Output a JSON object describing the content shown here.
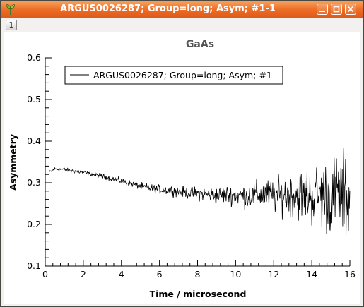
{
  "window": {
    "title": "ARGUS0026287; Group=long; Asym; #1-1",
    "tab_label": "1"
  },
  "colors": {
    "titlebar": "#ec6c25",
    "plot_line": "#000000"
  },
  "chart_data": {
    "type": "line",
    "title": "GaAs",
    "xlabel": "Time / microsecond",
    "ylabel": "Asymmetry",
    "xlim": [
      0,
      16
    ],
    "ylim": [
      0.1,
      0.6
    ],
    "xticks": [
      "0",
      "2",
      "4",
      "6",
      "8",
      "10",
      "12",
      "14",
      "16"
    ],
    "yticks": [
      "0.1",
      "0.2",
      "0.3",
      "0.4",
      "0.5",
      "0.6"
    ],
    "legend": {
      "placement": "top-left",
      "entries": [
        "ARGUS0026287; Group=long; Asym; #1"
      ]
    },
    "series": [
      {
        "name": "ARGUS0026287; Group=long; Asym; #1",
        "x": [
          0.2,
          0.5,
          1,
          1.5,
          2,
          2.5,
          3,
          3.5,
          4,
          4.5,
          5,
          5.5,
          6,
          6.5,
          7,
          7.5,
          8,
          8.5,
          9,
          9.5,
          10,
          10.5,
          11,
          11.5,
          12,
          12.5,
          13,
          13.5,
          14,
          14.5,
          15,
          15.5,
          16
        ],
        "y": [
          0.325,
          0.333,
          0.332,
          0.328,
          0.325,
          0.32,
          0.316,
          0.31,
          0.304,
          0.298,
          0.292,
          0.287,
          0.284,
          0.282,
          0.279,
          0.276,
          0.274,
          0.272,
          0.27,
          0.271,
          0.27,
          0.268,
          0.27,
          0.272,
          0.268,
          0.27,
          0.272,
          0.27,
          0.268,
          0.27,
          0.268,
          0.27,
          0.265
        ],
        "noise": [
          0.004,
          0.004,
          0.004,
          0.005,
          0.005,
          0.005,
          0.006,
          0.006,
          0.007,
          0.007,
          0.008,
          0.009,
          0.01,
          0.011,
          0.012,
          0.013,
          0.015,
          0.016,
          0.018,
          0.02,
          0.023,
          0.026,
          0.03,
          0.034,
          0.038,
          0.043,
          0.05,
          0.058,
          0.065,
          0.075,
          0.085,
          0.095,
          0.1
        ]
      }
    ]
  }
}
